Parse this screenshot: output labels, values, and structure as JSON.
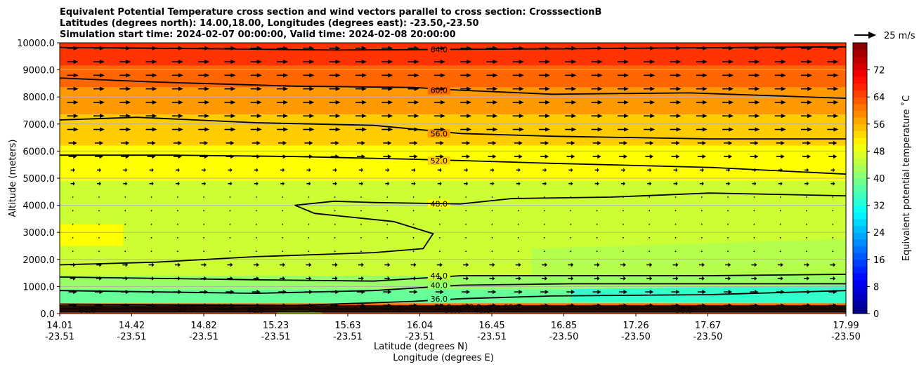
{
  "chart_data": {
    "type": "heatmap",
    "title_lines": [
      "Equivalent Potential Temperature cross section and wind vectors parallel to cross section: CrosssectionB",
      "Latitudes (degrees north): 14.00,18.00, Longitudes (degrees east): -23.50,-23.50",
      "Simulation start time: 2024-02-07 00:00:00, Valid time: 2024-02-08 20:00:00"
    ],
    "xlabel": "Latitude (degrees N)",
    "xlabel2": "Longitude (degrees E)",
    "ylabel": "Altitude (meters)",
    "xlim": [
      14.01,
      17.99
    ],
    "ylim": [
      0,
      10000
    ],
    "x_tick_labels": [
      {
        "lat": "14.01",
        "lon": "-23.51"
      },
      {
        "lat": "14.42",
        "lon": "-23.51"
      },
      {
        "lat": "14.82",
        "lon": "-23.51"
      },
      {
        "lat": "15.23",
        "lon": "-23.51"
      },
      {
        "lat": "15.63",
        "lon": "-23.51"
      },
      {
        "lat": "16.04",
        "lon": "-23.51"
      },
      {
        "lat": "16.45",
        "lon": "-23.51"
      },
      {
        "lat": "16.85",
        "lon": "-23.50"
      },
      {
        "lat": "17.26",
        "lon": "-23.50"
      },
      {
        "lat": "17.67",
        "lon": "-23.50"
      },
      {
        "lat": "17.99",
        "lon": "-23.50"
      }
    ],
    "y_tick_labels": [
      "0.0",
      "1000.0",
      "2000.0",
      "3000.0",
      "4000.0",
      "5000.0",
      "6000.0",
      "7000.0",
      "8000.0",
      "9000.0",
      "10000.0"
    ],
    "y_tick_values": [
      0,
      1000,
      2000,
      3000,
      4000,
      5000,
      6000,
      7000,
      8000,
      9000,
      10000
    ],
    "grid": "horizontal",
    "colorbar": {
      "label": "Equivalent potential temperature $^\\circ$C",
      "label_text": "Equivalent potential temperature ˚C",
      "range": [
        0,
        80
      ],
      "tick_labels": [
        "0",
        "8",
        "16",
        "24",
        "32",
        "40",
        "48",
        "56",
        "64",
        "72"
      ],
      "tick_values": [
        0,
        8,
        16,
        24,
        32,
        40,
        48,
        56,
        64,
        72
      ],
      "colormap": "jet"
    },
    "quiver_key": {
      "label": "25 m/s"
    },
    "contours": [
      {
        "level": 64,
        "label": "64.0",
        "points": [
          [
            14.01,
            9830
          ],
          [
            14.8,
            9780
          ],
          [
            15.4,
            9730
          ],
          [
            16.04,
            9760
          ],
          [
            16.6,
            9780
          ],
          [
            17.3,
            9820
          ],
          [
            17.99,
            9850
          ]
        ]
      },
      {
        "level": 60,
        "label": "60.0",
        "points": [
          [
            14.01,
            8700
          ],
          [
            14.5,
            8550
          ],
          [
            15.2,
            8400
          ],
          [
            15.8,
            8350
          ],
          [
            16.04,
            8250
          ],
          [
            16.5,
            8100
          ],
          [
            17.2,
            8150
          ],
          [
            17.99,
            7950
          ]
        ]
      },
      {
        "level": 56,
        "label": "56.0",
        "points": [
          [
            14.01,
            7150
          ],
          [
            14.4,
            7250
          ],
          [
            15.0,
            7050
          ],
          [
            15.6,
            6950
          ],
          [
            16.04,
            6650
          ],
          [
            16.5,
            6550
          ],
          [
            17.3,
            6450
          ],
          [
            17.99,
            6450
          ]
        ]
      },
      {
        "level": 52,
        "label": "52.0",
        "points": [
          [
            14.01,
            5850
          ],
          [
            14.6,
            5850
          ],
          [
            15.2,
            5800
          ],
          [
            15.8,
            5700
          ],
          [
            16.04,
            5650
          ],
          [
            16.5,
            5550
          ],
          [
            17.3,
            5400
          ],
          [
            17.99,
            5150
          ]
        ]
      },
      {
        "level": 48,
        "label": "48.0",
        "points": [
          [
            16.04,
            4050
          ],
          [
            16.3,
            4250
          ],
          [
            16.8,
            4300
          ],
          [
            17.3,
            4450
          ],
          [
            17.99,
            4350
          ]
        ]
      },
      {
        "level": 48,
        "label": "",
        "points": [
          [
            16.04,
            4050
          ],
          [
            15.6,
            4100
          ],
          [
            15.4,
            4150
          ],
          [
            15.2,
            4000
          ],
          [
            15.3,
            3700
          ],
          [
            15.7,
            3400
          ],
          [
            15.9,
            2950
          ],
          [
            15.85,
            2400
          ],
          [
            15.6,
            2250
          ],
          [
            15.0,
            2100
          ],
          [
            14.5,
            1900
          ],
          [
            14.01,
            1800
          ]
        ]
      },
      {
        "level": 44,
        "label": "44.0",
        "points": [
          [
            14.01,
            1350
          ],
          [
            15.0,
            1250
          ],
          [
            15.6,
            1200
          ],
          [
            16.04,
            1400
          ],
          [
            16.5,
            1400
          ],
          [
            17.3,
            1400
          ],
          [
            17.99,
            1450
          ]
        ]
      },
      {
        "level": 40,
        "label": "40.0",
        "points": [
          [
            14.01,
            850
          ],
          [
            15.0,
            750
          ],
          [
            15.6,
            850
          ],
          [
            16.04,
            1050
          ],
          [
            16.6,
            1100
          ],
          [
            17.3,
            1100
          ],
          [
            17.99,
            1100
          ]
        ]
      },
      {
        "level": 36,
        "label": "36.0",
        "points": [
          [
            14.01,
            350
          ],
          [
            15.2,
            300
          ],
          [
            15.8,
            450
          ],
          [
            16.04,
            550
          ],
          [
            16.5,
            650
          ],
          [
            17.3,
            700
          ],
          [
            17.99,
            850
          ]
        ]
      }
    ],
    "contour_labels_near_surface": [
      "64.0",
      "28.0",
      "36.0",
      "44.0",
      "44.0",
      "56.0",
      "36.0",
      "40.0",
      "40.0",
      "48.0",
      "56.0",
      "60.0",
      "36.0"
    ]
  }
}
